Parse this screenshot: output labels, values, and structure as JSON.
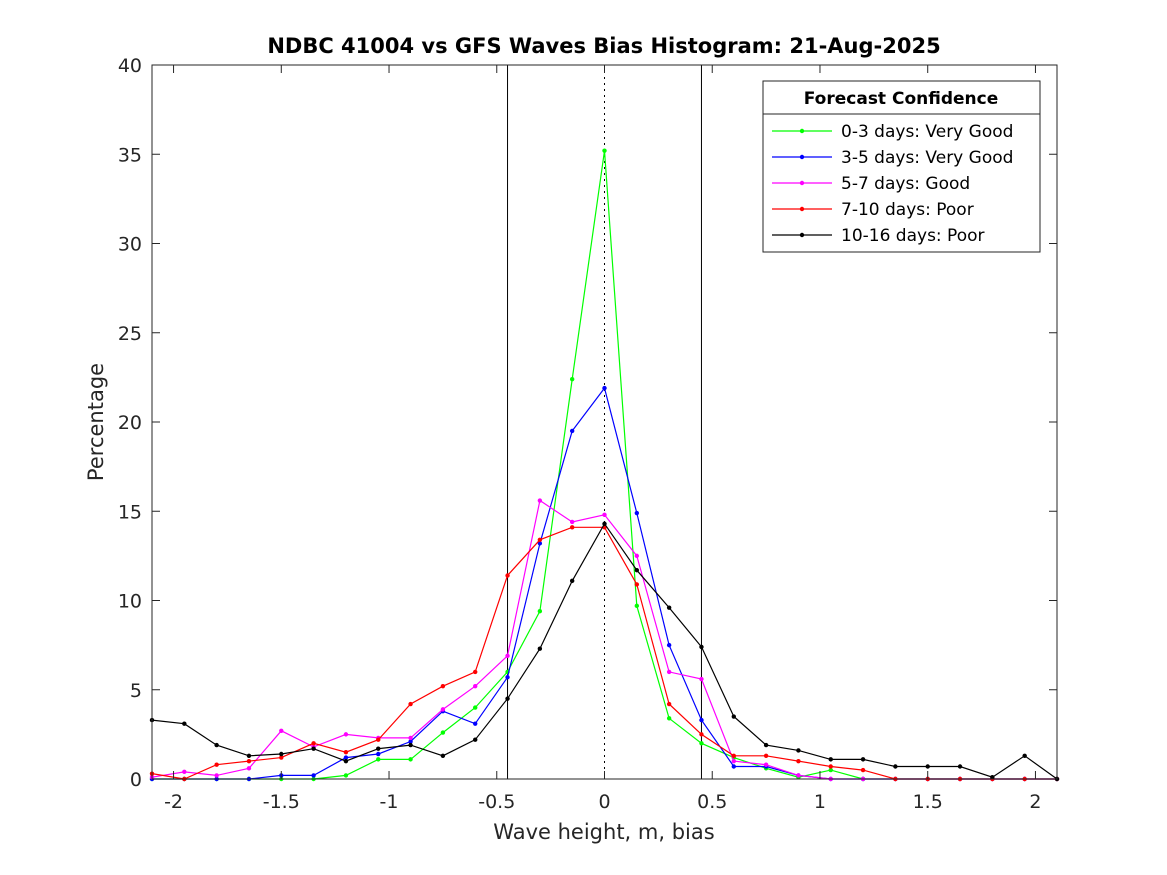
{
  "chart_data": {
    "type": "line",
    "title": "NDBC 41004 vs GFS Waves Bias Histogram: 21-Aug-2025",
    "xlabel": "Wave height, m, bias",
    "ylabel": "Percentage",
    "xlim": [
      -2.1,
      2.1
    ],
    "ylim": [
      0,
      40
    ],
    "xticks": [
      -2,
      -1.5,
      -1,
      -0.5,
      0,
      0.5,
      1,
      1.5,
      2
    ],
    "xtick_labels": [
      "-2",
      "-1.5",
      "-1",
      "-0.5",
      "0",
      "0.5",
      "1",
      "1.5",
      "2"
    ],
    "yticks": [
      0,
      5,
      10,
      15,
      20,
      25,
      30,
      35,
      40
    ],
    "ytick_labels": [
      "0",
      "5",
      "10",
      "15",
      "20",
      "25",
      "30",
      "35",
      "40"
    ],
    "grid": false,
    "reference_lines": [
      {
        "x": -0.45,
        "style": "solid"
      },
      {
        "x": 0,
        "style": "dotted"
      },
      {
        "x": 0.45,
        "style": "solid"
      }
    ],
    "legend": {
      "title": "Forecast Confidence",
      "position": "top-right"
    },
    "x": [
      -2.1,
      -1.95,
      -1.8,
      -1.65,
      -1.5,
      -1.35,
      -1.2,
      -1.05,
      -0.9,
      -0.75,
      -0.6,
      -0.45,
      -0.3,
      -0.15,
      0,
      0.15,
      0.3,
      0.45,
      0.6,
      0.75,
      0.9,
      1.05,
      1.2,
      1.35,
      1.5,
      1.65,
      1.8,
      1.95,
      2.1
    ],
    "series": [
      {
        "name": "0-3 days: Very Good",
        "color": "#00ff00",
        "values": [
          0,
          0,
          0,
          0,
          0,
          0,
          0.2,
          1.1,
          1.1,
          2.6,
          4,
          6,
          9.4,
          22.4,
          35.2,
          9.7,
          3.4,
          2,
          1.2,
          0.6,
          0.1,
          0.5,
          0,
          0,
          0,
          0,
          0,
          0,
          0
        ]
      },
      {
        "name": "3-5 days: Very Good",
        "color": "#0000ff",
        "values": [
          0,
          0,
          0,
          0,
          0.2,
          0.2,
          1.2,
          1.4,
          2.1,
          3.8,
          3.1,
          5.7,
          13.2,
          19.5,
          21.9,
          14.9,
          7.5,
          3.3,
          0.7,
          0.7,
          0.2,
          0,
          0,
          0,
          0,
          0,
          0,
          0,
          0
        ]
      },
      {
        "name": "5-7 days: Good",
        "color": "#ff00ff",
        "values": [
          0.1,
          0.4,
          0.2,
          0.6,
          2.7,
          1.8,
          2.5,
          2.3,
          2.3,
          3.9,
          5.2,
          6.9,
          15.6,
          14.4,
          14.8,
          12.5,
          6,
          5.6,
          1,
          0.8,
          0.2,
          0,
          0,
          0,
          0,
          0,
          0,
          0,
          0
        ]
      },
      {
        "name": "7-10 days: Poor",
        "color": "#ff0000",
        "values": [
          0.3,
          0,
          0.8,
          1,
          1.2,
          2,
          1.5,
          2.2,
          4.2,
          5.2,
          6,
          11.4,
          13.4,
          14.1,
          14.1,
          10.9,
          4.2,
          2.5,
          1.3,
          1.3,
          1,
          0.7,
          0.5,
          0,
          0,
          0,
          0,
          0,
          0
        ]
      },
      {
        "name": "10-16 days: Poor",
        "color": "#000000",
        "values": [
          3.3,
          3.1,
          1.9,
          1.3,
          1.4,
          1.7,
          1,
          1.7,
          1.9,
          1.3,
          2.2,
          4.5,
          7.3,
          11.1,
          14.3,
          11.7,
          9.6,
          7.4,
          3.5,
          1.9,
          1.6,
          1.1,
          1.1,
          0.7,
          0.7,
          0.7,
          0.1,
          1.3,
          0
        ]
      }
    ]
  }
}
